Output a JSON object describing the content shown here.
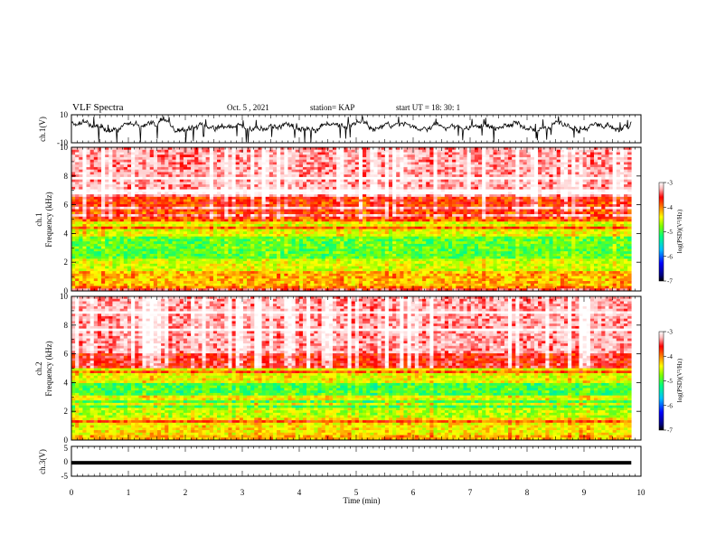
{
  "header": {
    "title": "VLF  Spectra",
    "date": "Oct. 5  , 2021",
    "station": "station= KAP",
    "start": "start  UT  =   18: 30: 1"
  },
  "chart_data": [
    {
      "type": "line",
      "name": "ch1-waveform",
      "ylabel": "ch.1(V)",
      "ylim": [
        -10,
        10
      ],
      "yticks": [
        "10",
        "-10"
      ],
      "x_range_min": [
        0,
        9.83
      ],
      "trace": "noisy waveform oscillating between about -9 V and +8 V, mean near 2 V"
    },
    {
      "type": "heatmap",
      "name": "ch1-spectrogram",
      "ylabel": "ch.1\nFrequency (kHz)",
      "ylabel_lines": [
        "ch.1",
        "Frequency (kHz)"
      ],
      "ylim": [
        0,
        10
      ],
      "yticks": [
        "0",
        "2",
        "4",
        "6",
        "8",
        "10"
      ],
      "x_range_min": [
        0,
        9.83
      ],
      "colorbar": {
        "label": "log(PSD)(V²/Hz)",
        "min": -7,
        "max": -3,
        "ticks": [
          "-3",
          "-4",
          "-5",
          "-6",
          "-7"
        ]
      },
      "bands_khz": [
        {
          "from": 0,
          "to": 0.3,
          "level": -4.4
        },
        {
          "from": 0.3,
          "to": 1.3,
          "level": -4.6
        },
        {
          "from": 1.3,
          "to": 2.2,
          "level": -5.0
        },
        {
          "from": 2.2,
          "to": 3.8,
          "level": -5.4
        },
        {
          "from": 3.8,
          "to": 4.9,
          "level": -4.9
        },
        {
          "from": 4.9,
          "to": 5.6,
          "level": -4.3
        },
        {
          "from": 5.6,
          "to": 6.5,
          "level": -4.2
        },
        {
          "from": 6.5,
          "to": 10,
          "level": -3.6
        }
      ]
    },
    {
      "type": "heatmap",
      "name": "ch2-spectrogram",
      "ylabel": "ch.2\nFrequency (kHz)",
      "ylabel_lines": [
        "ch.2",
        "Frequency (kHz)"
      ],
      "ylim": [
        0,
        10
      ],
      "yticks": [
        "0",
        "2",
        "4",
        "6",
        "8",
        "10"
      ],
      "x_range_min": [
        0,
        9.83
      ],
      "colorbar": {
        "label": "log(PSD)(V²/Hz)",
        "min": -7,
        "max": -3,
        "ticks": [
          "-3",
          "-4",
          "-5",
          "-6",
          "-7"
        ]
      },
      "bands_khz": [
        {
          "from": 0,
          "to": 0.3,
          "level": -4.6
        },
        {
          "from": 0.3,
          "to": 1.5,
          "level": -4.8
        },
        {
          "from": 1.5,
          "to": 2.2,
          "level": -5.1
        },
        {
          "from": 2.2,
          "to": 3.9,
          "level": -5.5
        },
        {
          "from": 3.9,
          "to": 5.0,
          "level": -4.9
        },
        {
          "from": 5.0,
          "to": 6.0,
          "level": -4.0
        },
        {
          "from": 6.0,
          "to": 10,
          "level": -3.6
        }
      ]
    },
    {
      "type": "line",
      "name": "ch3-waveform",
      "ylabel": "ch.3(V)",
      "ylim": [
        -5,
        5
      ],
      "yticks": [
        "5",
        "0",
        "-5"
      ],
      "x_range_min": [
        0,
        9.83
      ],
      "trace": "dense band between about -1.1 V and 0.1 V"
    }
  ],
  "xaxis": {
    "label": "Time  (min)",
    "range": [
      0,
      10
    ],
    "ticks": [
      "0",
      "1",
      "2",
      "3",
      "4",
      "5",
      "6",
      "7",
      "8",
      "9",
      "10"
    ]
  },
  "colors": {
    "colormap": [
      "#000080",
      "#0000ff",
      "#00c0ff",
      "#00ff80",
      "#80ff00",
      "#ffff00",
      "#ff8000",
      "#ff0000",
      "#ffc0c0",
      "#ffffff"
    ]
  }
}
